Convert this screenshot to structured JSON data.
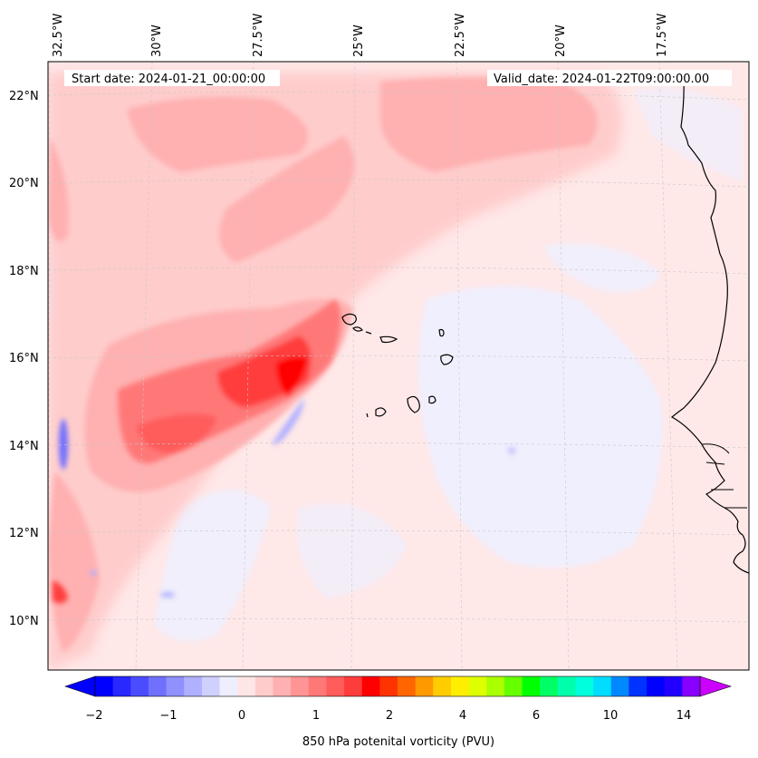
{
  "map": {
    "start_date": "Start date: 2024-01-21_00:00:00",
    "valid_date": "Valid_date: 2024-01-22T09:00:00.00",
    "lon_labels": [
      "32.5°W",
      "30°W",
      "27.5°W",
      "25°W",
      "22.5°W",
      "20°W",
      "17.5°W"
    ],
    "lat_labels": [
      "22°N",
      "20°N",
      "18°N",
      "16°N",
      "14°N",
      "12°N",
      "10°N"
    ],
    "gridlines": true,
    "coastline_color": "#000000"
  },
  "colorbar": {
    "label": "850 hPa potenital vorticity (PVU)",
    "tick_labels": [
      "−2",
      "−1",
      "0",
      "1",
      "2",
      "4",
      "6",
      "10",
      "14"
    ],
    "colors": [
      "#0000ff",
      "#2828ff",
      "#4c4cff",
      "#7070ff",
      "#9090ff",
      "#b0b0ff",
      "#d0d0ff",
      "#eeeeff",
      "#ffe6e6",
      "#ffcccc",
      "#ffb0b0",
      "#ff9494",
      "#ff7878",
      "#ff5c5c",
      "#ff3c3c",
      "#ff0000",
      "#ff3300",
      "#ff6600",
      "#ff9900",
      "#ffcc00",
      "#ffee00",
      "#ddff00",
      "#aaff00",
      "#66ff00",
      "#00ff00",
      "#00ff66",
      "#00ffaa",
      "#00ffdd",
      "#00ddff",
      "#0088ff",
      "#0033ff",
      "#0000ff",
      "#2200ff",
      "#8800ff"
    ],
    "extend_min_color": "#0000ff",
    "extend_max_color": "#cc00ff"
  }
}
